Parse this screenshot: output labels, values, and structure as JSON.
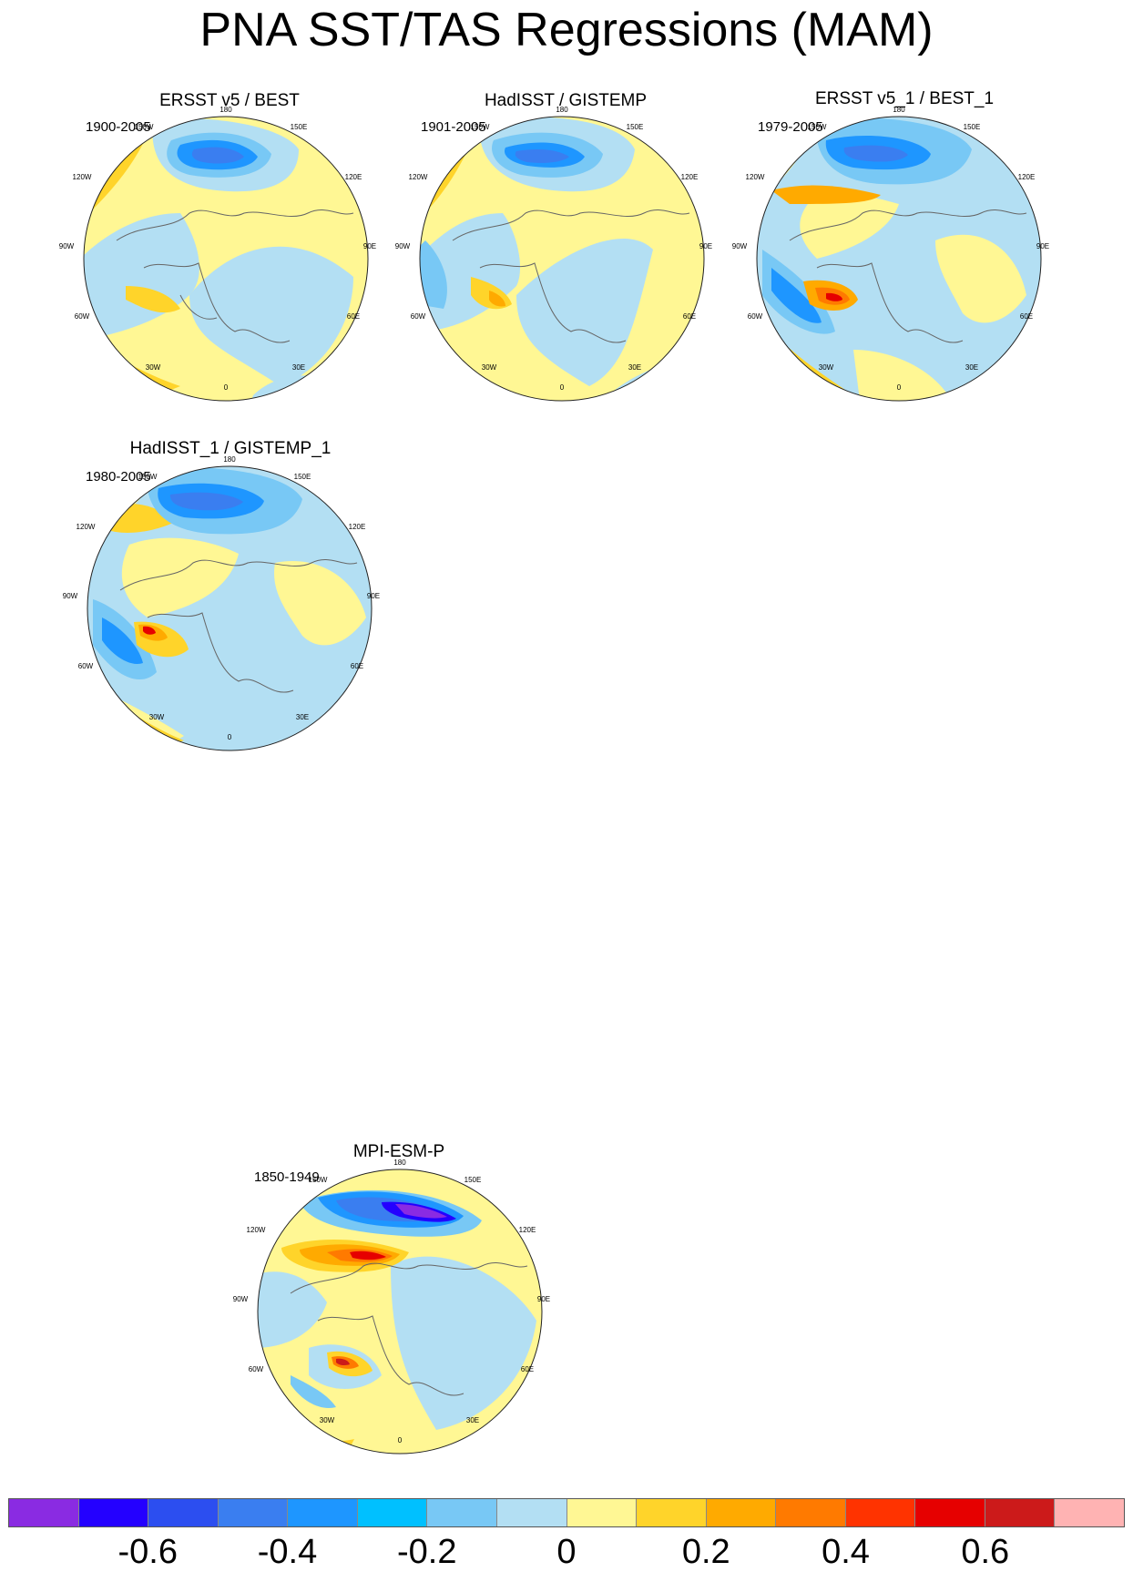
{
  "figure_title": "PNA SST/TAS Regressions (MAM)",
  "lon_labels": {
    "l180": "180",
    "l150E": "150E",
    "l120E": "120E",
    "l90E": "90E",
    "l60E": "60E",
    "l30E": "30E",
    "l0": "0",
    "l30W": "30W",
    "l60W": "60W",
    "l90W": "90W",
    "l120W": "120W",
    "l150W": "150W"
  },
  "panels": [
    {
      "title": "ERSST v5 / BEST",
      "period": "1900-2005"
    },
    {
      "title": "HadISST / GISTEMP",
      "period": "1901-2005"
    },
    {
      "title": "ERSST v5_1 / BEST_1",
      "period": "1979-2005"
    },
    {
      "title": "HadISST_1 / GISTEMP_1",
      "period": "1980-2005"
    },
    {
      "title": "MPI-ESM-P",
      "period": "1850-1949"
    }
  ],
  "colorbar": {
    "colors": [
      "#8a2be2",
      "#2400ff",
      "#2c4ef0",
      "#3a7ef0",
      "#1e96ff",
      "#00c0ff",
      "#78c8f5",
      "#b3dff3",
      "#fff794",
      "#ffd42a",
      "#ffaa00",
      "#ff7a00",
      "#ff3300",
      "#e60000",
      "#cc1a1a",
      "#ffb3b3"
    ],
    "labels": [
      "-0.6",
      "-0.4",
      "-0.2",
      "0",
      "0.2",
      "0.4",
      "0.6"
    ]
  }
}
